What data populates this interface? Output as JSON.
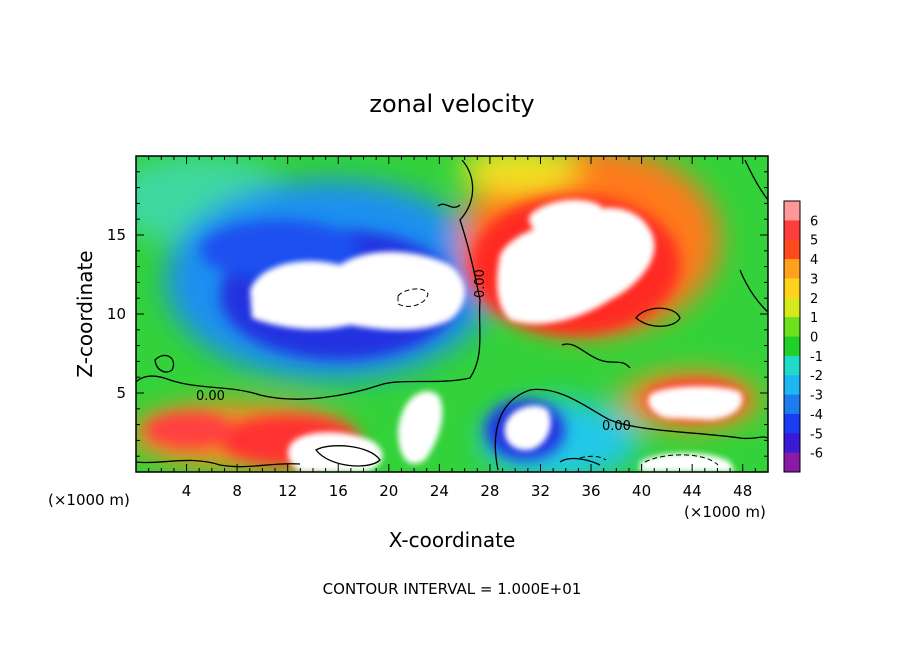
{
  "chart_data": {
    "type": "heatmap",
    "title": "zonal velocity",
    "xlabel": "X-coordinate",
    "ylabel": "Z-coordinate",
    "x_units": "(×1000 m)",
    "x_units_right": "(×1000 m)",
    "footer": "CONTOUR INTERVAL = 1.000E+01",
    "xlim": [
      0,
      50
    ],
    "ylim": [
      0,
      20
    ],
    "x_ticks": [
      4,
      8,
      12,
      16,
      20,
      24,
      28,
      32,
      36,
      40,
      44,
      48
    ],
    "y_ticks": [
      5,
      10,
      15
    ],
    "colorbar": {
      "levels": [
        -6,
        -5,
        -4,
        -3,
        -2,
        -1,
        0,
        1,
        2,
        3,
        4,
        5,
        6
      ],
      "colors": [
        "#8a1aa6",
        "#3b1ad6",
        "#1a3cf2",
        "#1c7cf0",
        "#1fb7f2",
        "#20d9c8",
        "#22d02a",
        "#6de01e",
        "#d6e81e",
        "#ffd21e",
        "#ffa01e",
        "#ff4a1e",
        "#ff3d3d",
        "#ff9999"
      ]
    },
    "contour_labels": [
      "0.00",
      "0.00",
      "0.00"
    ],
    "features": [
      {
        "name": "negative core",
        "x": 17,
        "z": 12,
        "value": -6
      },
      {
        "name": "positive core",
        "x": 36,
        "z": 13,
        "value": 6
      },
      {
        "name": "positive core low",
        "x": 22,
        "z": 3,
        "value": 6
      },
      {
        "name": "negative core low",
        "x": 31,
        "z": 2,
        "value": -6
      },
      {
        "name": "positive core right",
        "x": 45,
        "z": 4.5,
        "value": 6
      }
    ]
  }
}
